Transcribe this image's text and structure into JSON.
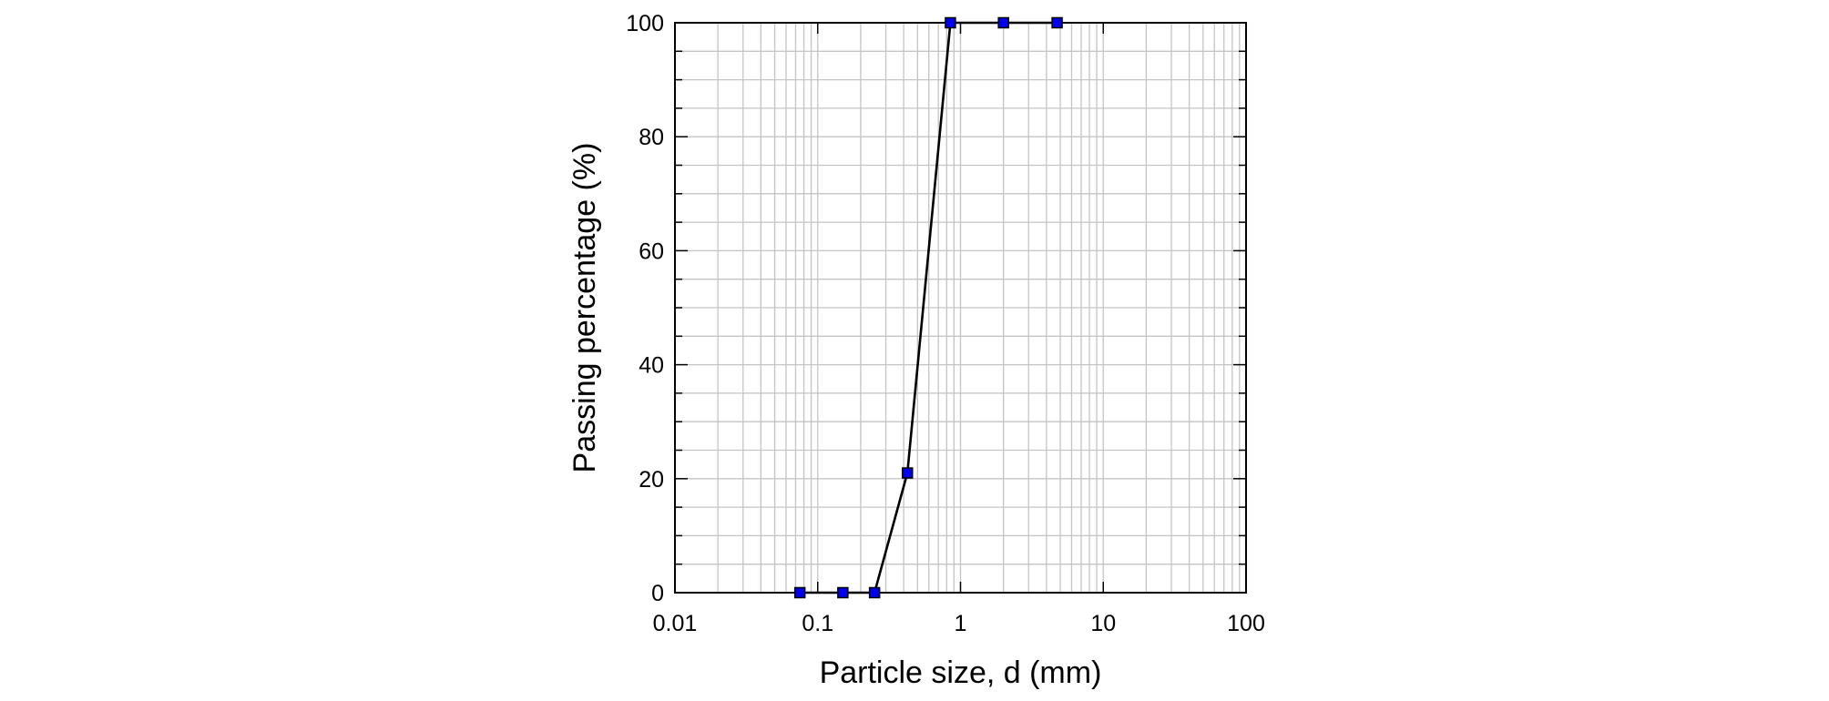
{
  "chart_data": {
    "type": "line",
    "xlabel": "Particle size, d (mm)",
    "ylabel": "Passing percentage (%)",
    "xscale": "log",
    "xlim": [
      0.01,
      100
    ],
    "ylim": [
      0,
      100
    ],
    "x_ticks": [
      0.01,
      0.1,
      1,
      10,
      100
    ],
    "x_tick_labels": [
      "0.01",
      "0.1",
      "1",
      "10",
      "100"
    ],
    "y_ticks": [
      0,
      20,
      40,
      60,
      80,
      100
    ],
    "y_tick_labels": [
      "0",
      "20",
      "40",
      "60",
      "80",
      "100"
    ],
    "grid": true,
    "legend": "none",
    "series": [
      {
        "x": [
          0.075,
          0.15,
          0.25,
          0.425,
          0.85,
          2.0,
          4.75
        ],
        "y": [
          0,
          0,
          0,
          21,
          100,
          100,
          100
        ],
        "line_color": "#000000",
        "marker": "square",
        "marker_color": "#0000ee"
      }
    ]
  }
}
